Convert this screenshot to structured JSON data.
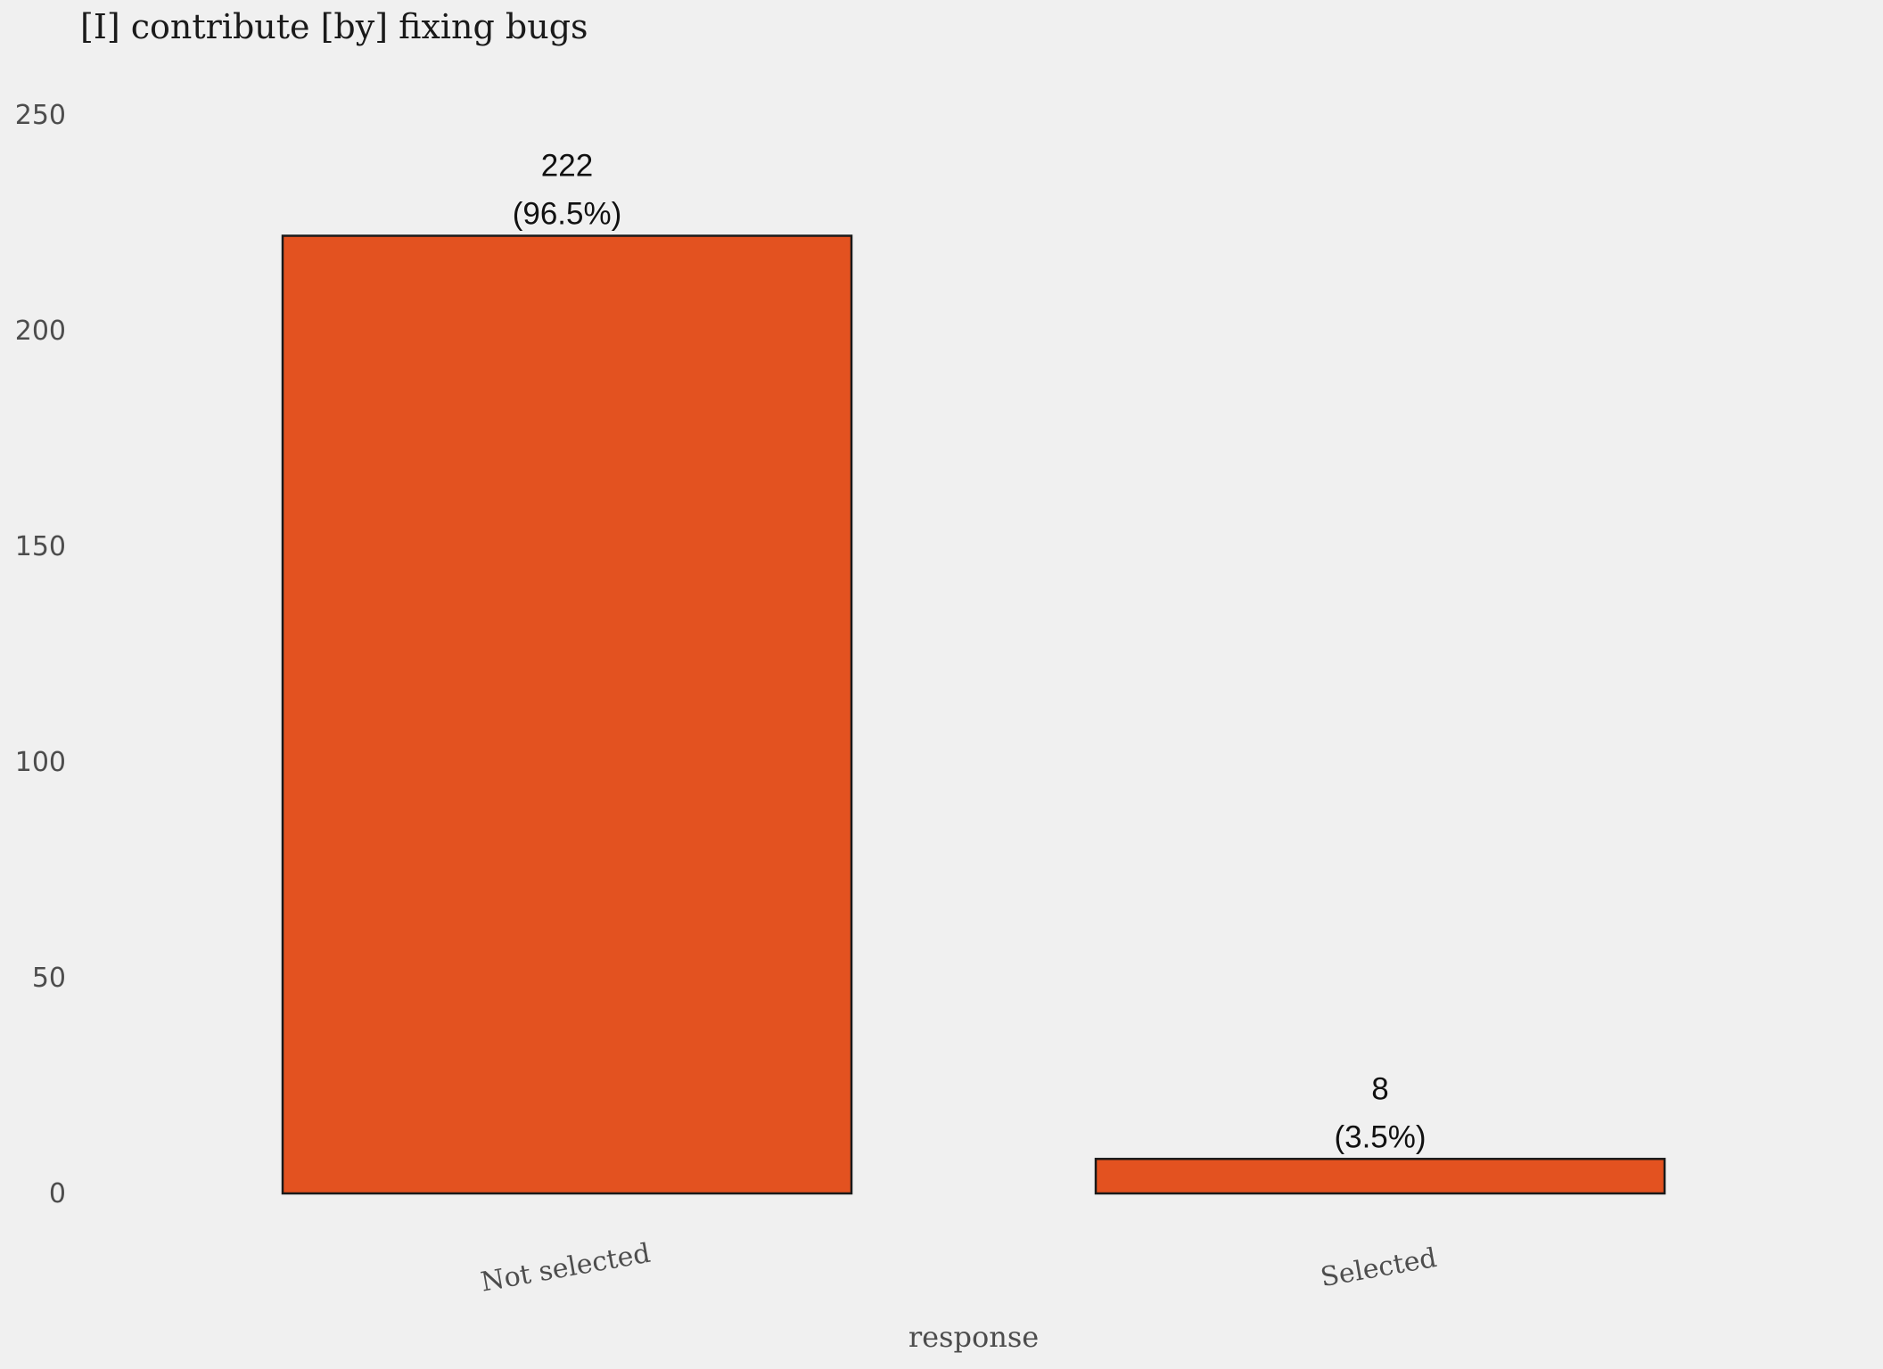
{
  "chart_data": {
    "type": "bar",
    "title": "[I] contribute [by] fixing bugs",
    "xlabel": "response",
    "ylabel": "",
    "categories": [
      "Not selected",
      "Selected"
    ],
    "values": [
      222,
      8
    ],
    "value_labels": [
      "222",
      "8"
    ],
    "percent_labels": [
      "(96.5%)",
      "(3.5%)"
    ],
    "ylim": [
      0,
      250
    ],
    "yticks": [
      0,
      50,
      100,
      150,
      200,
      250
    ],
    "grid": false,
    "legend": "none",
    "bar_color": "#e35220",
    "bar_edge_color": "#1a1a1a"
  }
}
